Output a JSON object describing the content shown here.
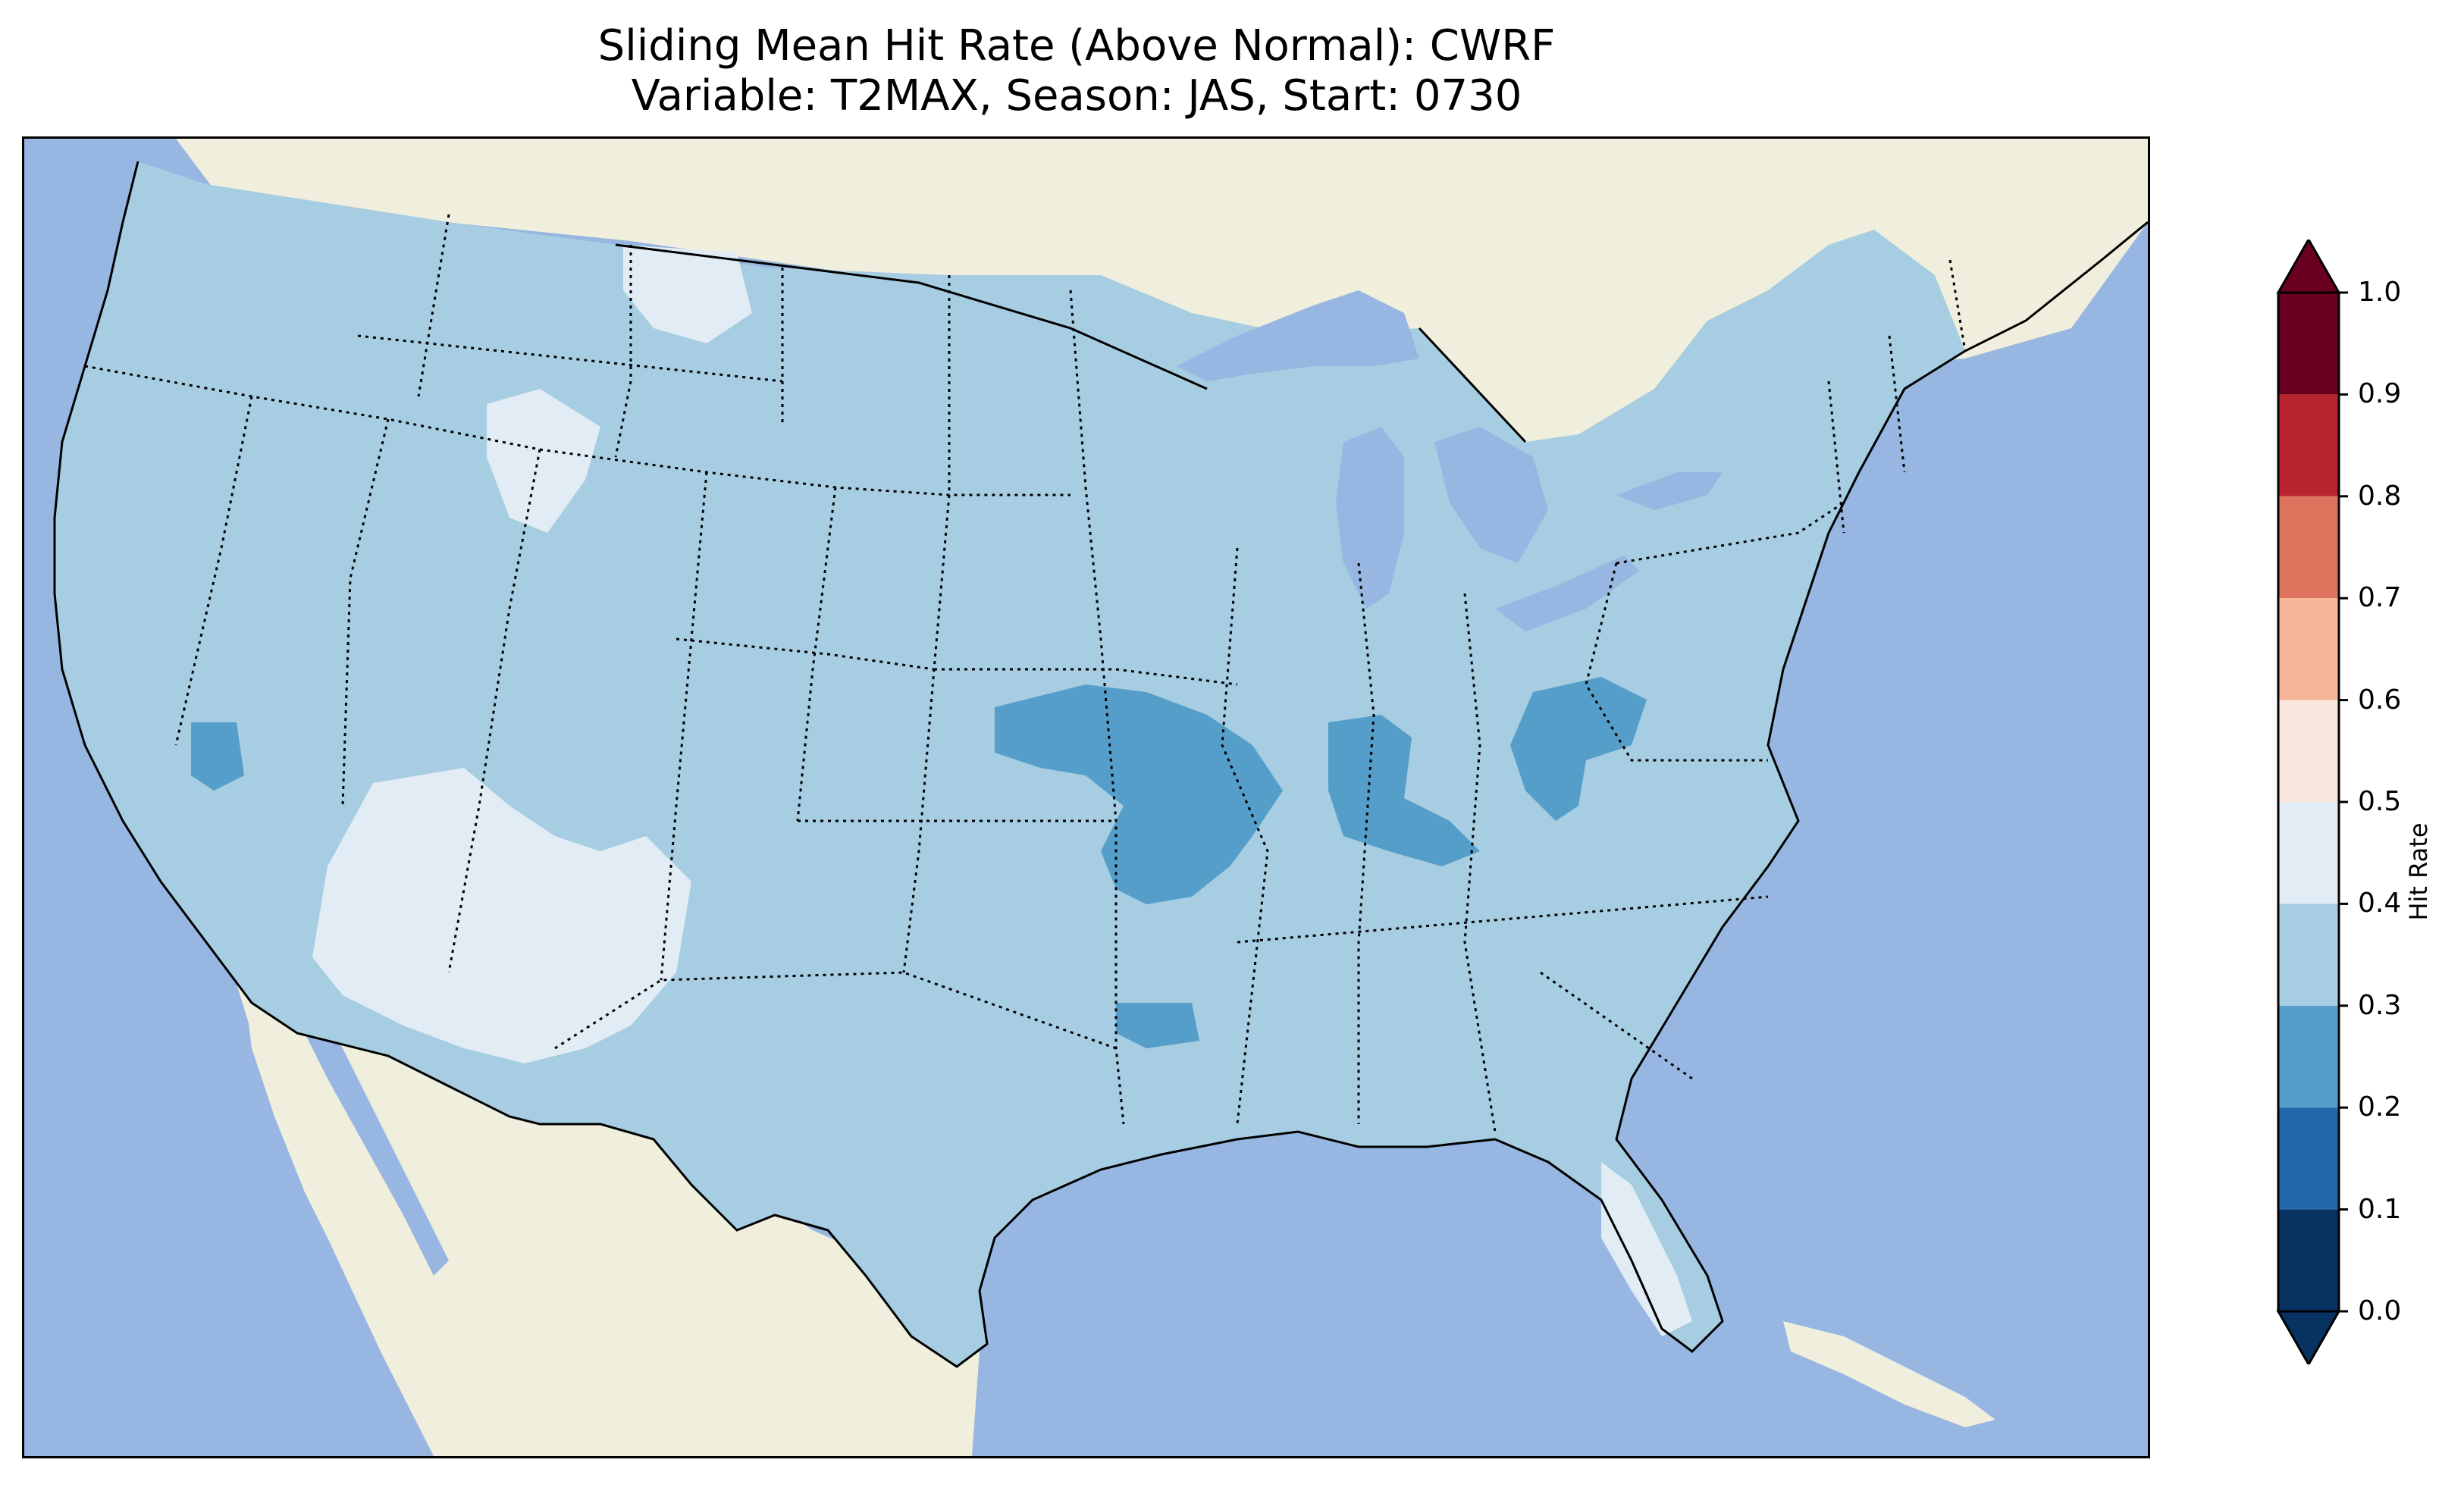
{
  "title": {
    "line1": "Sliding Mean Hit Rate (Above Normal): CWRF",
    "line2": "Variable: T2MAX, Season: JAS, Start: 0730"
  },
  "map": {
    "domain": "Contiguous United States",
    "ocean_color": "#97b6e1",
    "land_color": "#f0eedc",
    "hit_rate_regions": [
      {
        "name": "continental-us-base",
        "bin": "0.3-0.4",
        "color": "#a6cde2"
      },
      {
        "name": "northwest-montana-patch",
        "bin": "0.4-0.5",
        "color": "#e1ecf4"
      },
      {
        "name": "idaho-wyoming-patch",
        "bin": "0.4-0.5",
        "color": "#e1ecf4"
      },
      {
        "name": "arizona-new-mexico-patch",
        "bin": "0.4-0.5",
        "color": "#e1ecf4"
      },
      {
        "name": "south-florida-patch",
        "bin": "0.4-0.5",
        "color": "#e1ecf4"
      },
      {
        "name": "nevada-patch",
        "bin": "0.2-0.3",
        "color": "#549ec9"
      },
      {
        "name": "kansas-missouri-patch",
        "bin": "0.2-0.3",
        "color": "#549ec9"
      },
      {
        "name": "kentucky-ohio-valley-patch",
        "bin": "0.2-0.3",
        "color": "#549ec9"
      },
      {
        "name": "west-virginia-patch",
        "bin": "0.2-0.3",
        "color": "#549ec9"
      },
      {
        "name": "arkansas-louisiana-patch",
        "bin": "0.2-0.3",
        "color": "#549ec9"
      }
    ]
  },
  "colorbar": {
    "label": "Hit Rate",
    "ticks": [
      "0.0",
      "0.1",
      "0.2",
      "0.3",
      "0.4",
      "0.5",
      "0.6",
      "0.7",
      "0.8",
      "0.9",
      "1.0"
    ],
    "bins": [
      {
        "range": "0.0-0.1",
        "color": "#083262"
      },
      {
        "range": "0.1-0.2",
        "color": "#2467ad"
      },
      {
        "range": "0.2-0.3",
        "color": "#549ec9"
      },
      {
        "range": "0.3-0.4",
        "color": "#a6cde2"
      },
      {
        "range": "0.4-0.5",
        "color": "#e1ecf4"
      },
      {
        "range": "0.5-0.6",
        "color": "#f9e6dc"
      },
      {
        "range": "0.6-0.7",
        "color": "#f6b597"
      },
      {
        "range": "0.7-0.8",
        "color": "#de735e"
      },
      {
        "range": "0.8-0.9",
        "color": "#b8242e"
      },
      {
        "range": "0.9-1.0",
        "color": "#690020"
      }
    ],
    "under_color": "#083262",
    "over_color": "#690020"
  }
}
